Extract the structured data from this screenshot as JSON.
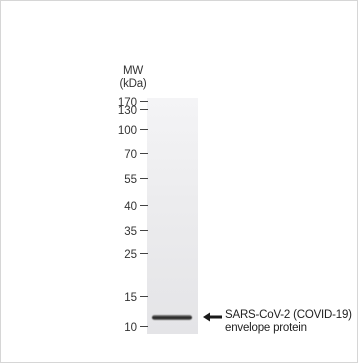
{
  "mw_header": {
    "line1": "MW",
    "line2": "(kDa)"
  },
  "markers": [
    {
      "id": "170",
      "label": "170"
    },
    {
      "id": "130",
      "label": "130"
    },
    {
      "id": "100",
      "label": "100"
    },
    {
      "id": "70",
      "label": "70"
    },
    {
      "id": "55",
      "label": "55"
    },
    {
      "id": "40",
      "label": "40"
    },
    {
      "id": "35",
      "label": "35"
    },
    {
      "id": "25",
      "label": "25"
    },
    {
      "id": "15",
      "label": "15"
    },
    {
      "id": "10",
      "label": "10"
    }
  ],
  "band_label": {
    "line1": "SARS-CoV-2 (COVID-19)",
    "line2": "envelope protein"
  },
  "colors": {
    "band": "#1e1e1e",
    "lane": "#ececee",
    "text": "#333333"
  },
  "icons": {
    "arrow": "arrow-left-icon"
  }
}
